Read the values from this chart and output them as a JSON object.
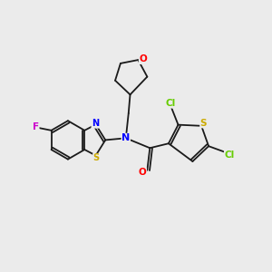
{
  "bg_color": "#ebebeb",
  "bond_color": "#1a1a1a",
  "atom_colors": {
    "N": "#0000ff",
    "O": "#ff0000",
    "S": "#ccaa00",
    "F": "#cc00cc",
    "Cl": "#66cc00",
    "C": "#1a1a1a"
  },
  "figsize": [
    3.0,
    3.0
  ],
  "dpi": 100
}
